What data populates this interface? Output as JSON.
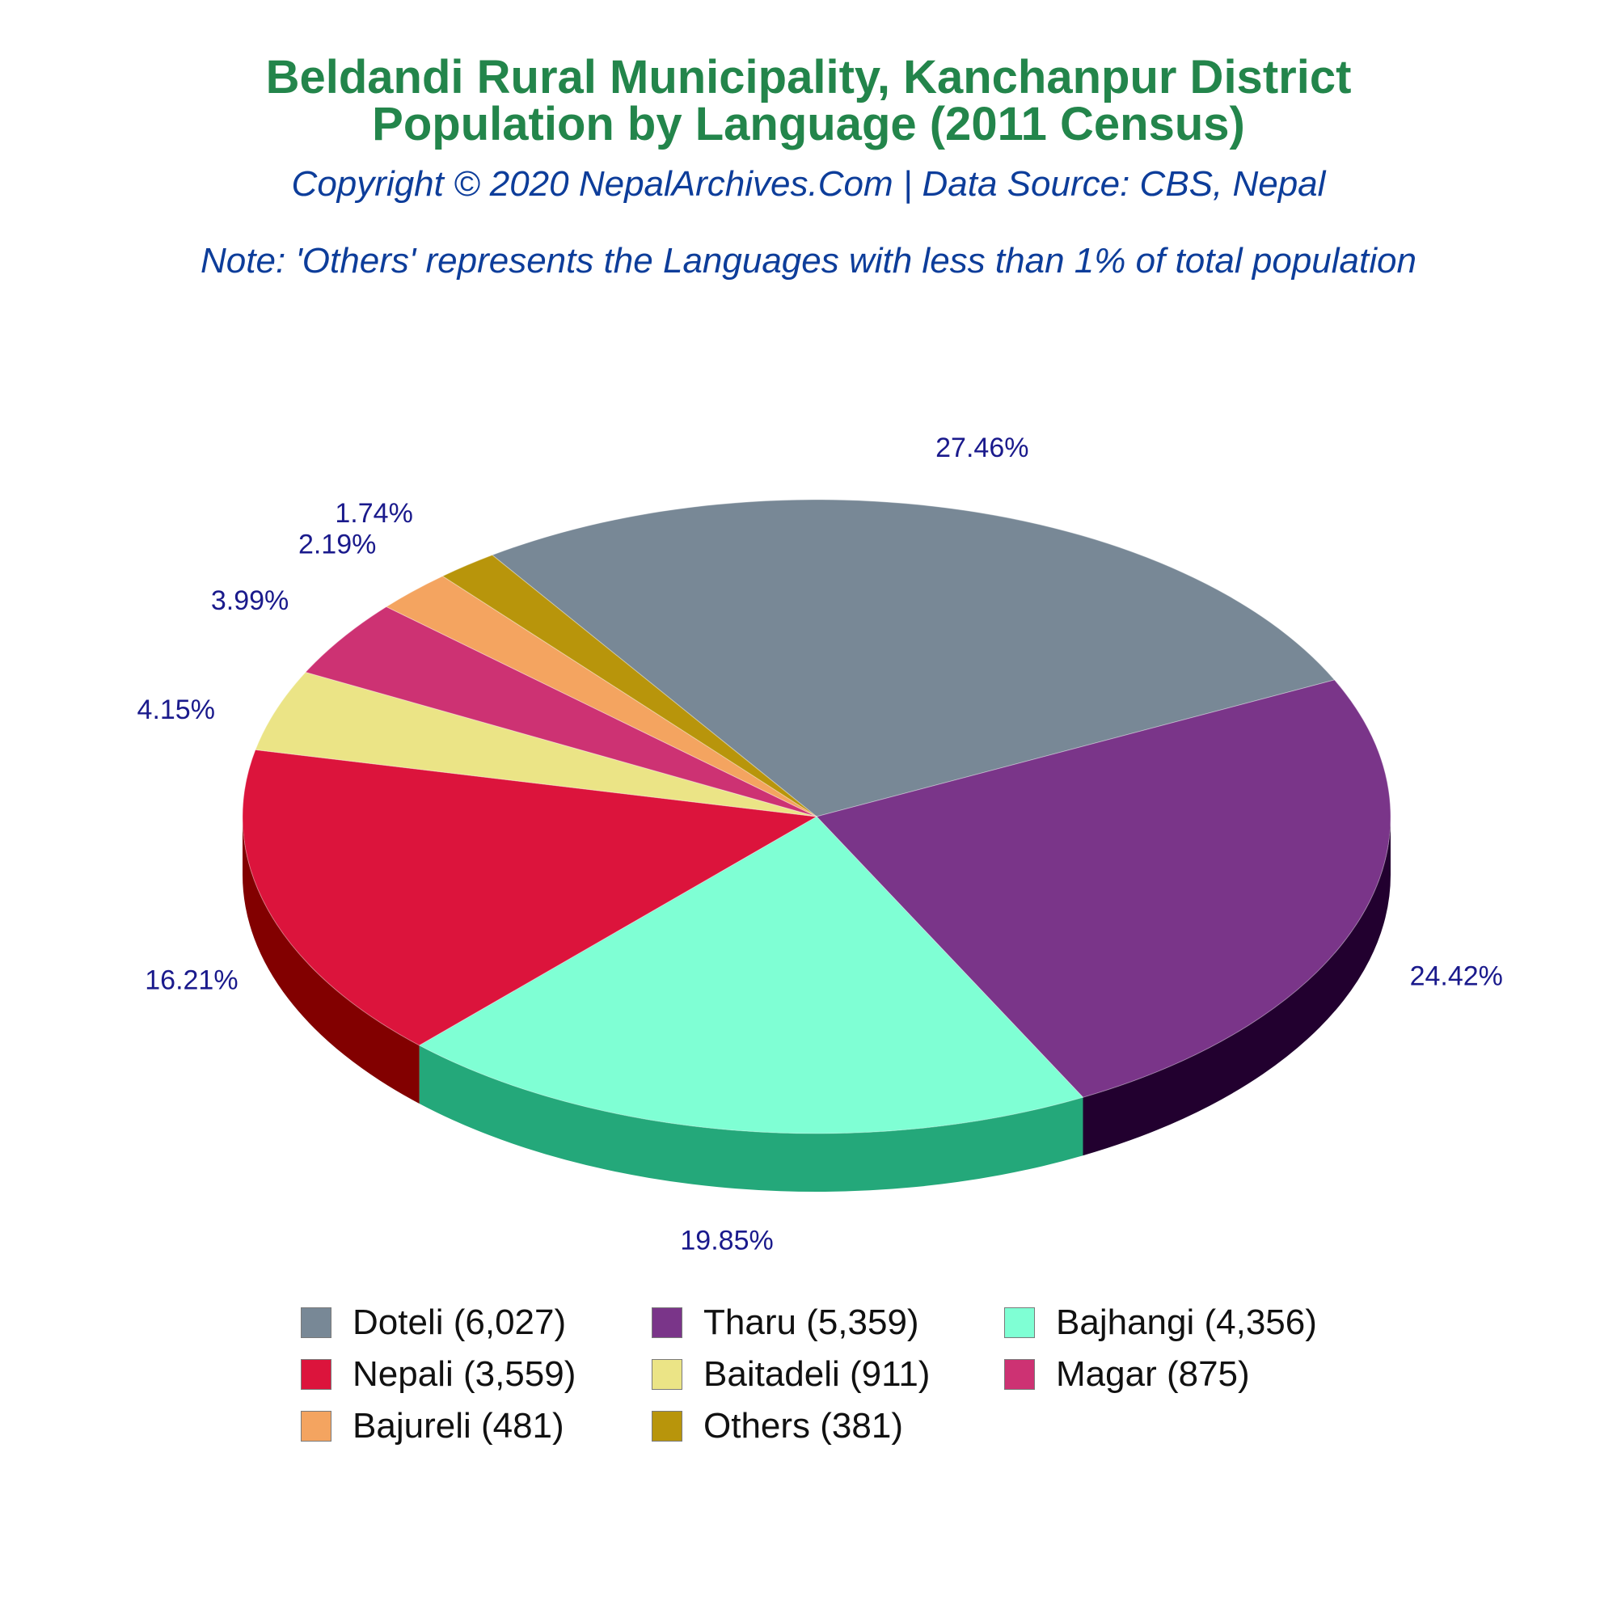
{
  "chart_data": {
    "type": "pie",
    "title": "Beldandi Rural Municipality, Kanchanpur District",
    "subtitle": "Population by Language (2011 Census)",
    "copyright": "Copyright © 2020 NepalArchives.Com | Data Source: CBS, Nepal",
    "note": "Note: 'Others' represents the Languages with less than 1% of total population",
    "three_d": true,
    "legend_position": "bottom",
    "slices": [
      {
        "legend": "Doteli (6,027)",
        "label": "Doteli",
        "value": 6027,
        "percent_label": "27.46%",
        "color": "#788896",
        "side_color": "#4a5561"
      },
      {
        "legend": "Tharu (5,359)",
        "label": "Tharu",
        "value": 5359,
        "percent_label": "24.42%",
        "color": "#7a3589",
        "side_color": "#22002f"
      },
      {
        "legend": "Bajhangi (4,356)",
        "label": "Bajhangi",
        "value": 4356,
        "percent_label": "19.85%",
        "color": "#7fffd4",
        "side_color": "#24a87a"
      },
      {
        "legend": "Nepali (3,559)",
        "label": "Nepali",
        "value": 3559,
        "percent_label": "16.21%",
        "color": "#dc143c",
        "side_color": "#820000"
      },
      {
        "legend": "Baitadeli (911)",
        "label": "Baitadeli",
        "value": 911,
        "percent_label": "4.15%",
        "color": "#ebe486",
        "side_color": "#8a8420"
      },
      {
        "legend": "Magar (875)",
        "label": "Magar",
        "value": 875,
        "percent_label": "3.99%",
        "color": "#cd3273",
        "side_color": "#7a1040"
      },
      {
        "legend": "Bajureli (481)",
        "label": "Bajureli",
        "value": 481,
        "percent_label": "2.19%",
        "color": "#f4a460",
        "side_color": "#a05a20"
      },
      {
        "legend": "Others (381)",
        "label": "Others",
        "value": 381,
        "percent_label": "1.74%",
        "color": "#b8950b",
        "side_color": "#6a5400"
      }
    ]
  }
}
